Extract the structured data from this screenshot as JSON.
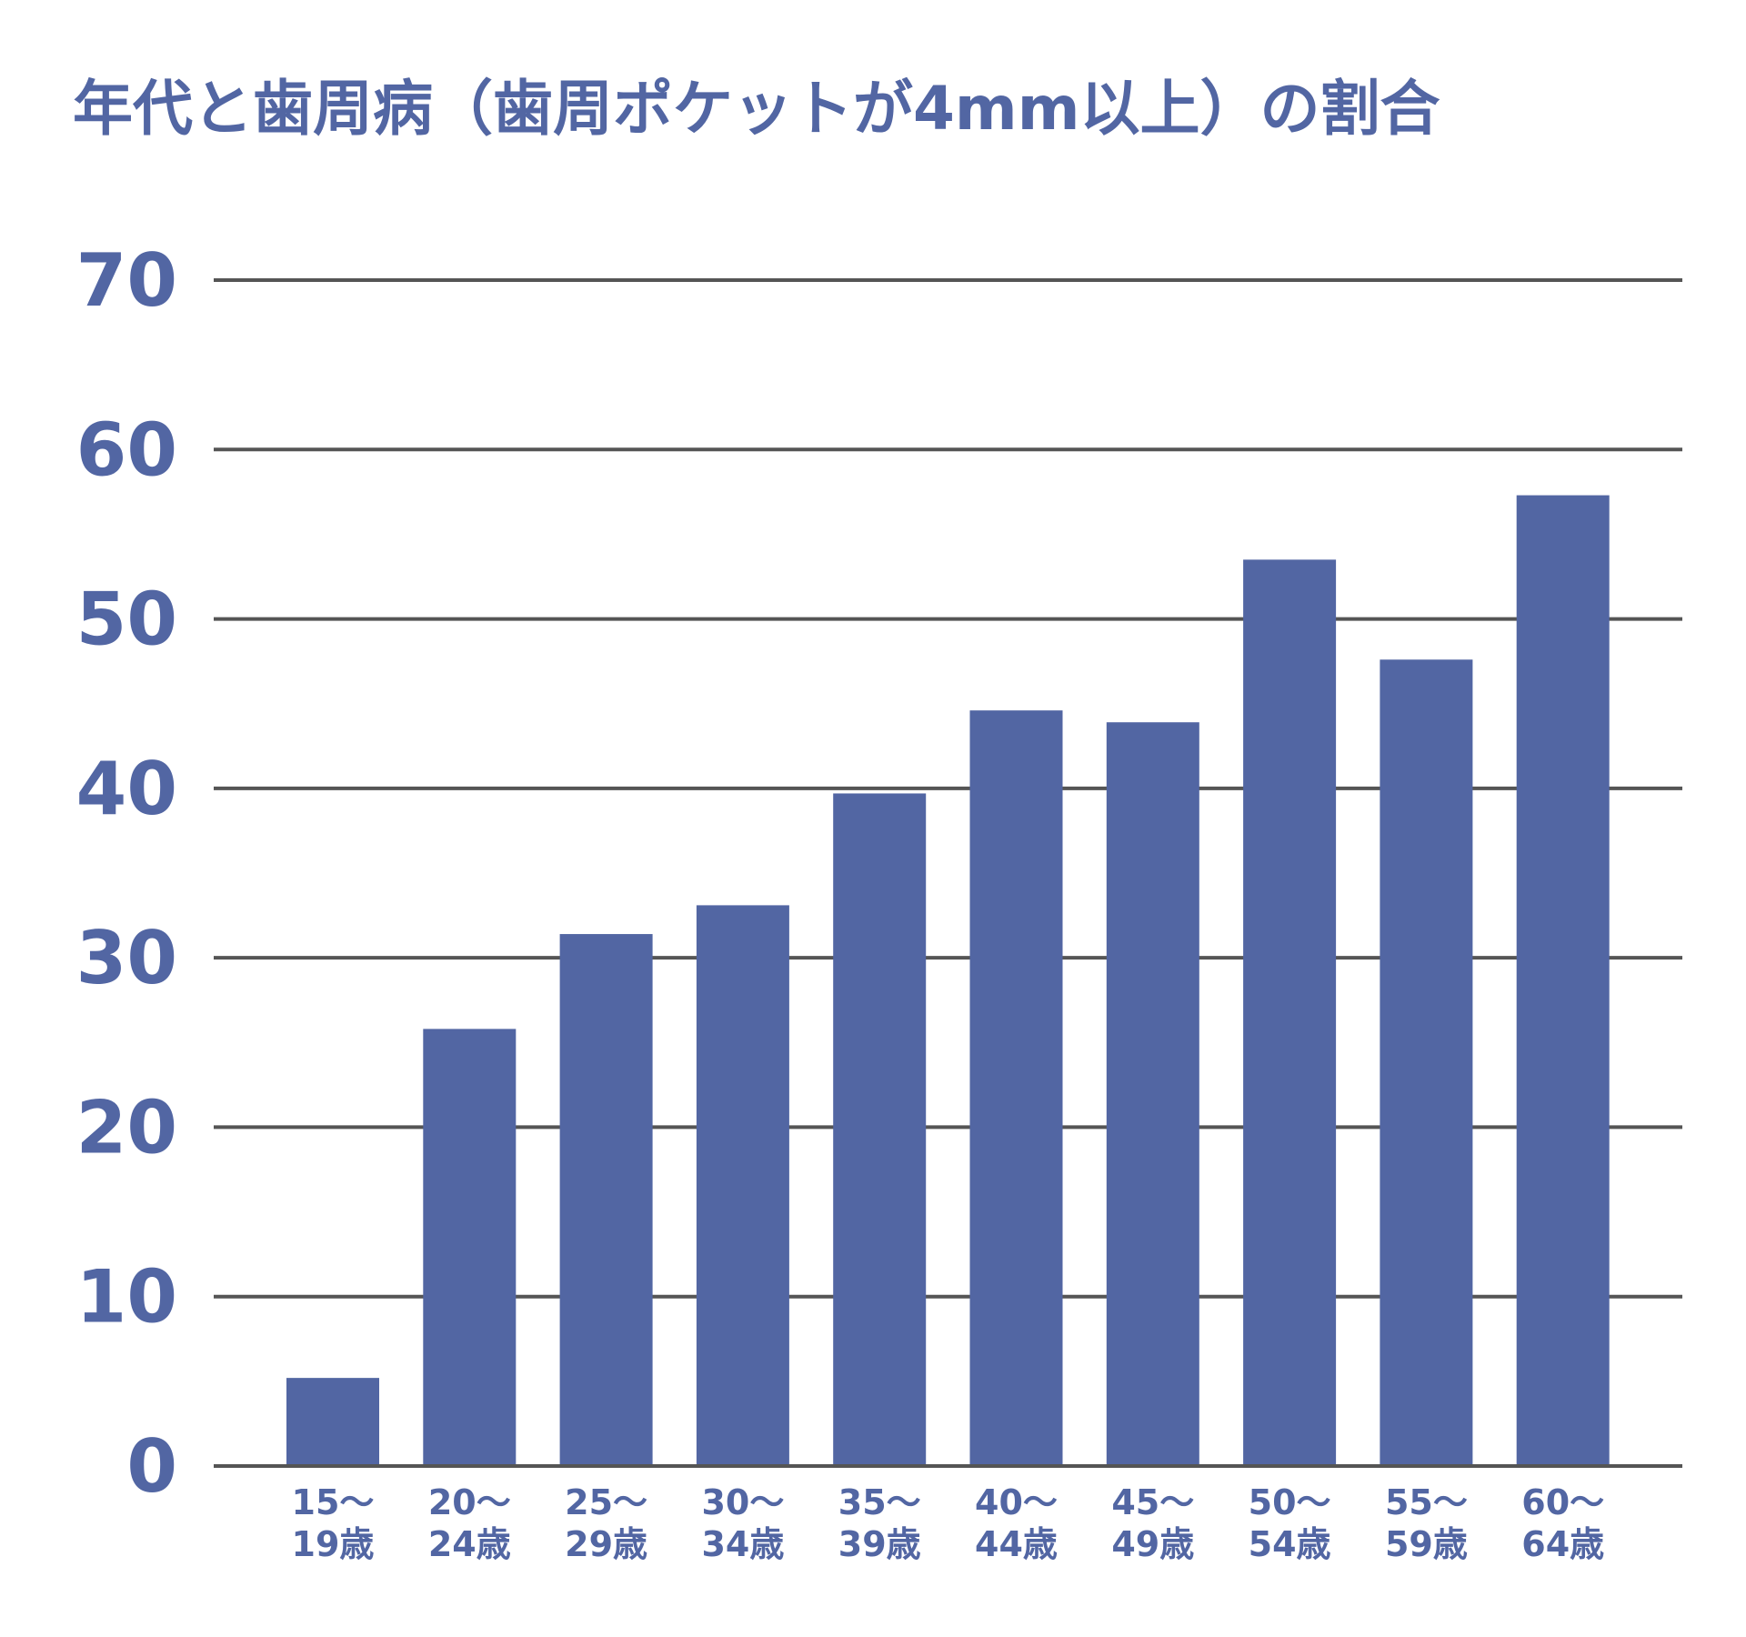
{
  "chart_data": {
    "type": "bar",
    "title": "年代と歯周病（歯周ポケットが4mm以上）の割合",
    "xlabel": "",
    "ylabel": "",
    "categories": [
      [
        "15～",
        "19歳"
      ],
      [
        "20～",
        "24歳"
      ],
      [
        "25～",
        "29歳"
      ],
      [
        "30～",
        "34歳"
      ],
      [
        "35～",
        "39歳"
      ],
      [
        "40～",
        "44歳"
      ],
      [
        "45～",
        "49歳"
      ],
      [
        "50～",
        "54歳"
      ],
      [
        "55～",
        "59歳"
      ],
      [
        "60～",
        "64歳"
      ]
    ],
    "values": [
      5.2,
      25.8,
      31.4,
      33.1,
      39.7,
      44.6,
      43.9,
      53.5,
      47.6,
      57.3
    ],
    "ylim": [
      0,
      70
    ],
    "yticks": [
      "0",
      "10",
      "20",
      "30",
      "40",
      "50",
      "60",
      "70"
    ],
    "grid": true,
    "legend": "none",
    "colors": {
      "bar": "#5266A3",
      "text": "#5266A3",
      "grid": "#555555"
    }
  }
}
